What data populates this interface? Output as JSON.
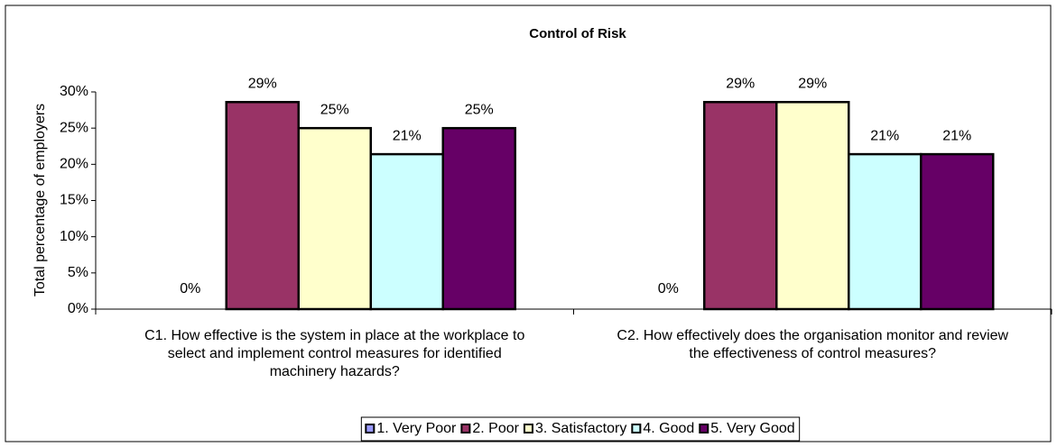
{
  "chart_data": {
    "type": "bar",
    "title": "Control of Risk",
    "y_axis_label": "Total percentage of employers",
    "categories": [
      "C1. How effective is the system in place at the workplace to select and implement control measures for identified machinery hazards?",
      "C2. How effectively does the organisation monitor and review the effectiveness of control measures?"
    ],
    "series": [
      {
        "name": "1. Very Poor",
        "color": "#9999ff",
        "values": [
          0,
          0
        ],
        "value_labels": [
          "0%",
          "0%"
        ]
      },
      {
        "name": "2. Poor",
        "color": "#993366",
        "values": [
          28.6,
          28.6
        ],
        "value_labels": [
          "29%",
          "29%"
        ]
      },
      {
        "name": "3. Satisfactory",
        "color": "#ffffcc",
        "values": [
          25,
          28.6
        ],
        "value_labels": [
          "25%",
          "29%"
        ]
      },
      {
        "name": "4. Good",
        "color": "#ccffff",
        "values": [
          21.4,
          21.4
        ],
        "value_labels": [
          "21%",
          "21%"
        ]
      },
      {
        "name": "5. Very Good",
        "color": "#660066",
        "values": [
          25,
          21.4
        ],
        "value_labels": [
          "25%",
          "21%"
        ]
      }
    ],
    "ylim": [
      0,
      30
    ],
    "yticks": [
      {
        "value": 0,
        "label": "0%"
      },
      {
        "value": 5,
        "label": "5%"
      },
      {
        "value": 10,
        "label": "10%"
      },
      {
        "value": 15,
        "label": "15%"
      },
      {
        "value": 20,
        "label": "20%"
      },
      {
        "value": 25,
        "label": "25%"
      },
      {
        "value": 30,
        "label": "30%"
      }
    ],
    "legend": "bottom"
  }
}
